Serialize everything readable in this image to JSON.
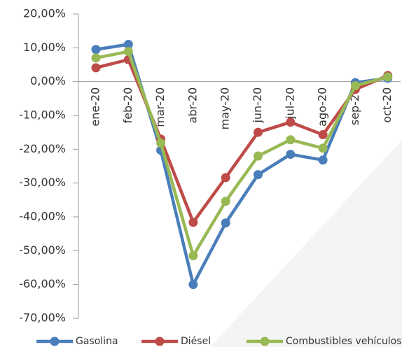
{
  "chart_data": {
    "type": "line",
    "categories": [
      "ene-20",
      "feb-20",
      "mar-20",
      "abr-20",
      "may-20",
      "jun-20",
      "jul-20",
      "ago-20",
      "sep-20",
      "oct-20"
    ],
    "series": [
      {
        "name": "Gasolina",
        "color": "#4a7ebb",
        "values": [
          9.5,
          11.0,
          -20.3,
          -60.0,
          -41.8,
          -27.5,
          -21.5,
          -23.2,
          -0.3,
          1.0
        ]
      },
      {
        "name": "Diésel",
        "color": "#be4b48",
        "values": [
          4.1,
          6.5,
          -17.0,
          -41.6,
          -28.4,
          -15.0,
          -12.0,
          -15.7,
          -2.3,
          1.8
        ]
      },
      {
        "name": "Combustibles vehículos",
        "color": "#98b954",
        "values": [
          7.0,
          8.9,
          -18.2,
          -51.5,
          -35.4,
          -22.0,
          -17.2,
          -19.7,
          -1.2,
          1.4
        ]
      }
    ],
    "ylim": [
      -70,
      20
    ],
    "yticks": [
      {
        "value": 20,
        "label": "20,00%"
      },
      {
        "value": 10,
        "label": "10,00%"
      },
      {
        "value": 0,
        "label": "0,00%"
      },
      {
        "value": -10,
        "label": "-10,00%"
      },
      {
        "value": -20,
        "label": "-20,00%"
      },
      {
        "value": -30,
        "label": "-30,00%"
      },
      {
        "value": -40,
        "label": "-40,00%"
      },
      {
        "value": -50,
        "label": "-50,00%"
      },
      {
        "value": -60,
        "label": "-60,00%"
      },
      {
        "value": -70,
        "label": "-70,00%"
      }
    ],
    "legend": "bottom"
  }
}
